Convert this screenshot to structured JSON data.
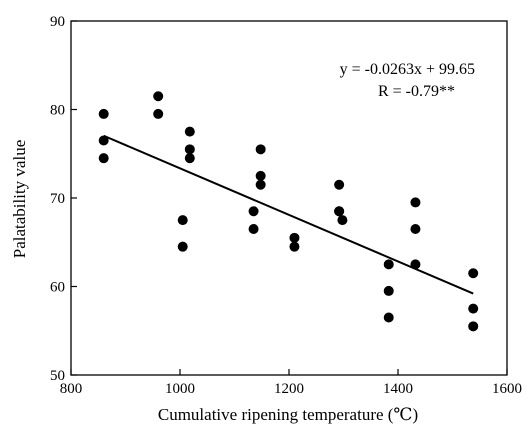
{
  "chart_data": {
    "type": "scatter",
    "title": "",
    "xlabel": "Cumulative ripening temperature (℃)",
    "ylabel": "Palatability  value",
    "xlim": [
      800,
      1600
    ],
    "ylim": [
      50,
      90
    ],
    "xticks": [
      800,
      1000,
      1200,
      1400,
      1600
    ],
    "yticks": [
      50,
      60,
      70,
      80,
      90
    ],
    "grid": false,
    "legend": "none",
    "series": [
      {
        "x": [
          860,
          860,
          860,
          960,
          960,
          1005,
          1005,
          1018,
          1018,
          1018,
          1135,
          1135,
          1148,
          1148,
          1148,
          1210,
          1210,
          1292,
          1292,
          1292,
          1298,
          1383,
          1383,
          1383,
          1432,
          1432,
          1432,
          1538,
          1538,
          1538
        ],
        "y": [
          79.5,
          76.5,
          74.5,
          81.5,
          79.5,
          67.5,
          64.5,
          77.5,
          75.5,
          74.5,
          68.5,
          66.5,
          75.5,
          72.5,
          71.5,
          65.5,
          64.5,
          71.5,
          68.5,
          68.5,
          67.5,
          62.5,
          59.5,
          56.5,
          69.5,
          66.5,
          62.5,
          61.5,
          57.5,
          55.5
        ]
      }
    ],
    "regression": {
      "slope": -0.0263,
      "intercept": 99.65,
      "x_range": [
        860,
        1538
      ],
      "equation": "y = -0.0263x + 99.65",
      "r_label": "R = -0.79**"
    },
    "colors": {
      "points": "#000000",
      "line": "#000000",
      "axes": "#000000"
    }
  }
}
